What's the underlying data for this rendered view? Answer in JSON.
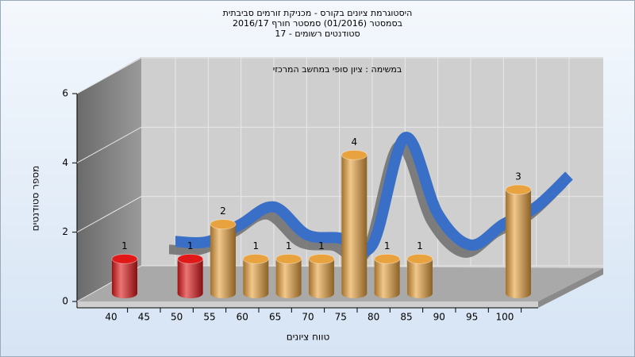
{
  "chart_data": {
    "type": "bar",
    "title": [
      "היסטוגרמת ציונים בקורס - מכניקת זורמים סביבתית",
      "בסמסטר  (01/2016)  סמסטר חורף 2016/17",
      "סטודנטים רשומים - 17"
    ],
    "subtitle": "במשימה : ציון סופי במחשב המרכזי",
    "x_label": "טווח ציונים",
    "y_label": "מספר סטודנטים",
    "categories": [
      "40",
      "45",
      "50",
      "55",
      "60",
      "65",
      "70",
      "75",
      "80",
      "85",
      "90",
      "95",
      "100"
    ],
    "values": [
      1,
      0,
      1,
      2,
      1,
      1,
      1,
      4,
      1,
      1,
      0,
      0,
      3
    ],
    "colors": [
      "#e01818",
      "#e01818",
      "#e01818",
      "#e8a23e",
      "#e8a23e",
      "#e8a23e",
      "#e8a23e",
      "#e8a23e",
      "#e8a23e",
      "#e8a23e",
      "#e8a23e",
      "#e8a23e",
      "#e8a23e"
    ],
    "line": {
      "values": [
        0.7,
        0.7,
        1.2,
        1.7,
        0.9,
        0.8,
        0.6,
        3.7,
        1.5,
        0.6,
        1.2,
        1.7,
        2.6
      ],
      "color": "#3a6fc8"
    },
    "ylim": [
      0,
      6
    ],
    "yticks": [
      0,
      2,
      4,
      6
    ],
    "grid": true
  }
}
